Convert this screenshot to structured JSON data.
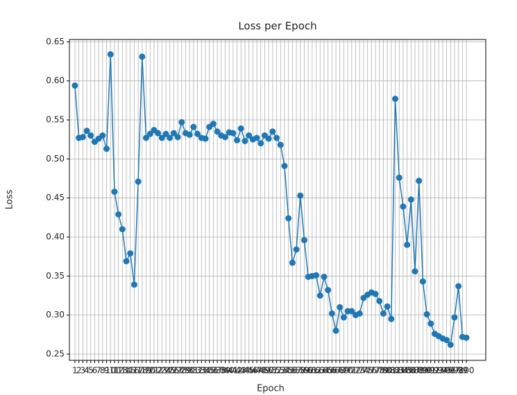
{
  "chart_data": {
    "type": "line",
    "title": "Loss per Epoch",
    "x_label": "Epoch",
    "y_label": "Loss",
    "x": [
      1,
      2,
      3,
      4,
      5,
      6,
      7,
      8,
      9,
      10,
      11,
      12,
      13,
      14,
      15,
      16,
      17,
      18,
      19,
      20,
      21,
      22,
      23,
      24,
      25,
      26,
      27,
      28,
      29,
      30,
      31,
      32,
      33,
      34,
      35,
      36,
      37,
      38,
      39,
      40,
      41,
      42,
      43,
      44,
      45,
      46,
      47,
      48,
      49,
      50,
      51,
      52,
      53,
      54,
      55,
      56,
      57,
      58,
      59,
      60,
      61,
      62,
      63,
      64,
      65,
      66,
      67,
      68,
      69,
      70,
      71,
      72,
      73,
      74,
      75,
      76,
      77,
      78,
      79,
      80,
      81,
      82,
      83,
      84,
      85,
      86,
      87,
      88,
      89,
      90,
      91,
      92,
      93,
      94,
      95,
      96,
      97,
      98,
      99,
      100
    ],
    "series": [
      {
        "name": "Loss",
        "color": "#1f77b4",
        "values": [
          0.594,
          0.527,
          0.528,
          0.536,
          0.53,
          0.522,
          0.526,
          0.53,
          0.513,
          0.634,
          0.458,
          0.429,
          0.41,
          0.369,
          0.379,
          0.339,
          0.471,
          0.631,
          0.527,
          0.532,
          0.537,
          0.533,
          0.527,
          0.532,
          0.527,
          0.533,
          0.528,
          0.547,
          0.533,
          0.531,
          0.541,
          0.532,
          0.527,
          0.526,
          0.541,
          0.545,
          0.535,
          0.53,
          0.528,
          0.534,
          0.533,
          0.524,
          0.539,
          0.523,
          0.53,
          0.525,
          0.527,
          0.52,
          0.53,
          0.526,
          0.535,
          0.527,
          0.518,
          0.491,
          0.424,
          0.367,
          0.384,
          0.453,
          0.396,
          0.349,
          0.35,
          0.351,
          0.325,
          0.349,
          0.332,
          0.302,
          0.28,
          0.31,
          0.297,
          0.305,
          0.305,
          0.3,
          0.302,
          0.322,
          0.326,
          0.329,
          0.327,
          0.318,
          0.302,
          0.311,
          0.295,
          0.577,
          0.476,
          0.439,
          0.39,
          0.448,
          0.356,
          0.472,
          0.343,
          0.301,
          0.289,
          0.276,
          0.273,
          0.27,
          0.268,
          0.262,
          0.297,
          0.337,
          0.272,
          0.271
        ]
      }
    ],
    "xlim": [
      -0.4,
      104.9
    ],
    "xticks": [
      1,
      2,
      3,
      4,
      5,
      6,
      7,
      8,
      9,
      10,
      11,
      12,
      13,
      14,
      15,
      16,
      17,
      18,
      19,
      20,
      21,
      22,
      23,
      24,
      25,
      26,
      27,
      28,
      29,
      30,
      31,
      32,
      33,
      34,
      35,
      36,
      37,
      38,
      39,
      40,
      41,
      42,
      43,
      44,
      45,
      46,
      47,
      48,
      49,
      50,
      51,
      52,
      53,
      54,
      55,
      56,
      57,
      58,
      59,
      60,
      61,
      62,
      63,
      64,
      65,
      66,
      67,
      68,
      69,
      70,
      71,
      72,
      73,
      74,
      75,
      76,
      77,
      78,
      79,
      80,
      81,
      82,
      83,
      84,
      85,
      86,
      87,
      88,
      89,
      90,
      91,
      92,
      93,
      94,
      95,
      96,
      97,
      98,
      99,
      100
    ],
    "ylim": [
      0.242,
      0.653
    ],
    "yticks": [
      0.25,
      {
        "value": 0.3,
        "label": "0.30"
      },
      0.35,
      {
        "value": 0.4,
        "label": "0.40"
      },
      0.45,
      {
        "value": 0.5,
        "label": "0.50"
      },
      0.55,
      {
        "value": 0.6,
        "label": "0.60"
      },
      0.65
    ],
    "grid": true
  }
}
